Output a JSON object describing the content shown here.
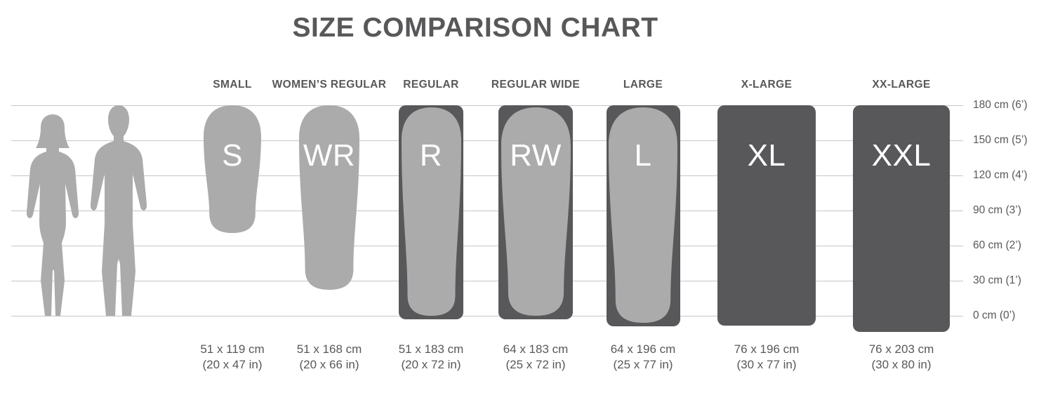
{
  "title": "SIZE COMPARISON CHART",
  "colors": {
    "background": "#ffffff",
    "pad_light": "#ababab",
    "pad_dark": "#58585a",
    "gridline": "#c6c6c6",
    "text": "#58585a",
    "letter": "#ffffff"
  },
  "figures": [
    "woman-silhouette",
    "man-silhouette"
  ],
  "axis": {
    "labels": [
      "180 cm (6’)",
      "150 cm (5’)",
      "120 cm (4’)",
      "90 cm (3’)",
      "60 cm (2’)",
      "30 cm (1’)",
      "0 cm (0’)"
    ]
  },
  "sizes": [
    {
      "id": "small",
      "label": "SMALL",
      "code": "S",
      "dim_cm": "51 x 119 cm",
      "dim_in": "(20 x 47 in)"
    },
    {
      "id": "womens-regular",
      "label": "WOMEN’S REGULAR",
      "code": "WR",
      "dim_cm": "51 x 168 cm",
      "dim_in": "(20 x 66 in)"
    },
    {
      "id": "regular",
      "label": "REGULAR",
      "code": "R",
      "dim_cm": "51 x 183 cm",
      "dim_in": "(20 x 72 in)"
    },
    {
      "id": "regular-wide",
      "label": "REGULAR WIDE",
      "code": "RW",
      "dim_cm": "64 x 183 cm",
      "dim_in": "(25 x 72 in)"
    },
    {
      "id": "large",
      "label": "LARGE",
      "code": "L",
      "dim_cm": "64 x 196 cm",
      "dim_in": "(25 x 77 in)"
    },
    {
      "id": "x-large",
      "label": "X-LARGE",
      "code": "XL",
      "dim_cm": "76 x 196 cm",
      "dim_in": "(30 x 77 in)"
    },
    {
      "id": "xx-large",
      "label": "XX-LARGE",
      "code": "XXL",
      "dim_cm": "76 x 203 cm",
      "dim_in": "(30 x 80 in)"
    }
  ],
  "chart_data": {
    "type": "bar",
    "title": "SIZE COMPARISON CHART",
    "categories": [
      "SMALL",
      "WOMEN’S REGULAR",
      "REGULAR",
      "REGULAR WIDE",
      "LARGE",
      "X-LARGE",
      "XX-LARGE"
    ],
    "series": [
      {
        "name": "width_cm",
        "values": [
          51,
          51,
          51,
          64,
          64,
          76,
          76
        ]
      },
      {
        "name": "length_cm",
        "values": [
          119,
          168,
          183,
          183,
          196,
          196,
          203
        ]
      },
      {
        "name": "width_in",
        "values": [
          20,
          20,
          20,
          25,
          25,
          30,
          30
        ]
      },
      {
        "name": "length_in",
        "values": [
          47,
          66,
          72,
          72,
          77,
          77,
          80
        ]
      }
    ],
    "ylabel": "height",
    "ylim": [
      0,
      180
    ],
    "yticks": [
      "0 cm (0’)",
      "30 cm (1’)",
      "60 cm (2’)",
      "90 cm (3’)",
      "120 cm (4’)",
      "150 cm (5’)",
      "180 cm (6’)"
    ],
    "legend": "none",
    "grid": true
  }
}
